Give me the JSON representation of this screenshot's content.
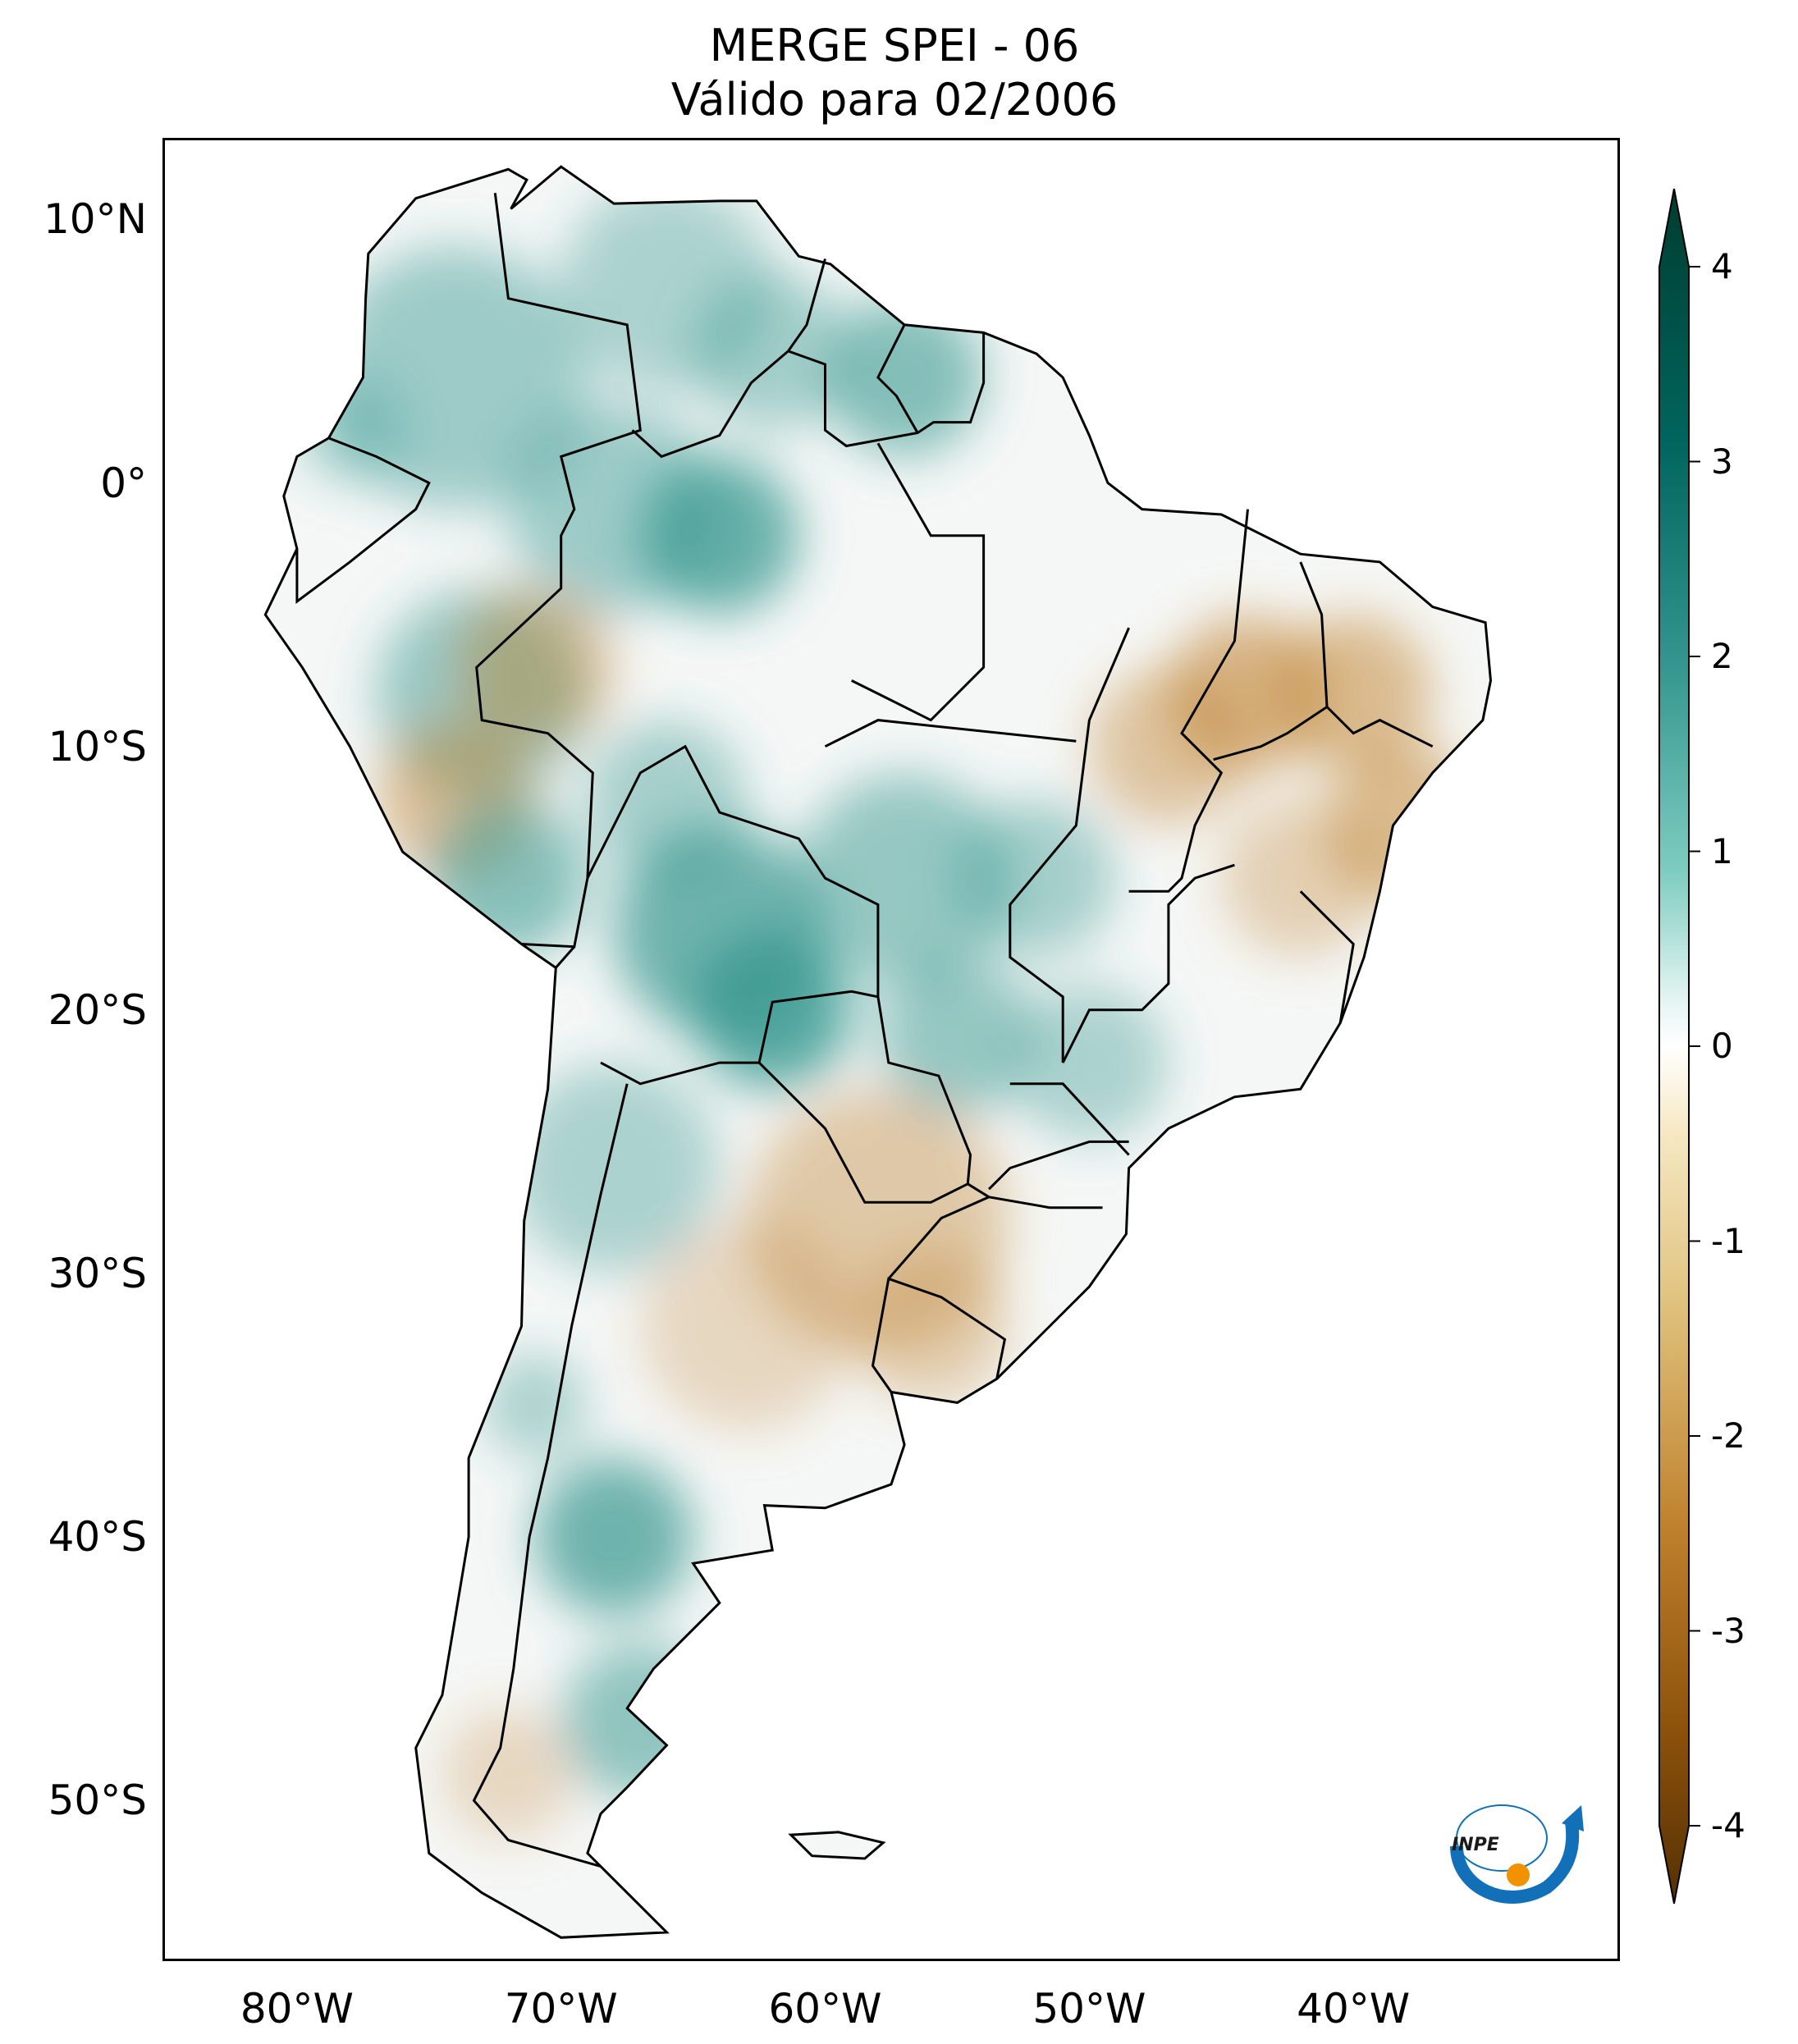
{
  "title": {
    "line1": "MERGE   SPEI - 06",
    "line2": "Válido para 02/2006"
  },
  "axes": {
    "lat_ticks": [
      {
        "label": "10°N",
        "lat": 10
      },
      {
        "label": "0°",
        "lat": 0
      },
      {
        "label": "10°S",
        "lat": -10
      },
      {
        "label": "20°S",
        "lat": -20
      },
      {
        "label": "30°S",
        "lat": -30
      },
      {
        "label": "40°S",
        "lat": -40
      },
      {
        "label": "50°S",
        "lat": -50
      }
    ],
    "lon_ticks": [
      {
        "label": "80°W",
        "lon": -80
      },
      {
        "label": "70°W",
        "lon": -70
      },
      {
        "label": "60°W",
        "lon": -60
      },
      {
        "label": "50°W",
        "lon": -50
      },
      {
        "label": "40°W",
        "lon": -40
      }
    ],
    "lon_range": [
      -85,
      -30
    ],
    "lat_range": [
      -56,
      13
    ]
  },
  "colorbar": {
    "range": [
      -4,
      4
    ],
    "ticks": [
      "4",
      "3",
      "2",
      "1",
      "0",
      "-1",
      "-2",
      "-3",
      "-4"
    ],
    "colors": {
      "pos_max": "#003c30",
      "pos_mid": "#35978f",
      "pos_low": "#c7eae5",
      "zero": "#ffffff",
      "neg_low": "#f6e8c3",
      "neg_mid": "#dfc27d",
      "neg_max": "#543005"
    }
  },
  "logo": {
    "text": "INPE",
    "colors": {
      "arc": "#1170b8",
      "dot": "#f39200"
    }
  },
  "map_features": {
    "dry_regions": [
      "northeast-brazil",
      "argentina-pampas",
      "uruguay",
      "peru-amazon",
      "patagonia-coast"
    ],
    "wet_regions": [
      "amazon-west",
      "venezuela-guiana",
      "bolivia-paraguay",
      "patagonia-north",
      "colombia"
    ]
  }
}
